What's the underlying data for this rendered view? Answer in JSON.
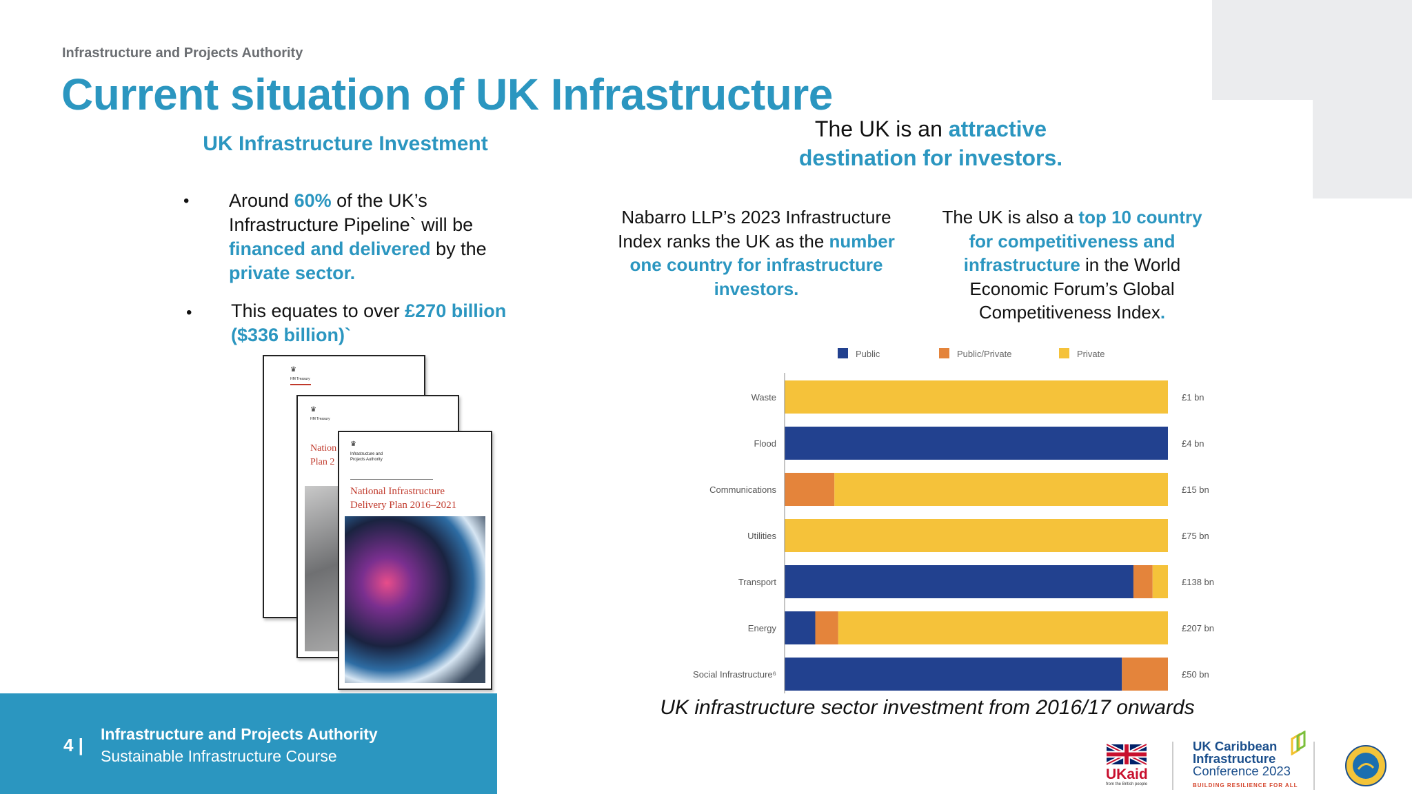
{
  "header": {
    "org_label": "Infrastructure and Projects Authority",
    "title": "Current situation of UK Infrastructure"
  },
  "left": {
    "heading": "UK Infrastructure Investment",
    "bullet1": {
      "t1": "Around ",
      "a1": "60%",
      "t2": " of the UK’s Infrastructure Pipeline` will be ",
      "a2": "financed and delivered",
      "t3": " by the ",
      "a3": "private sector."
    },
    "bullet2": {
      "t1": "This equates to over ",
      "a1": "£270 billion ($336 billion)",
      "t2": "`"
    },
    "bullet_char": "•",
    "reports": {
      "back_crest": "HM Treasury",
      "mid_crest": "HM Treasury",
      "mid_title": "Nation Plan 2",
      "front_org": "Infrastructure and Projects Authority",
      "front_title": "National Infrastructure Delivery Plan 2016–2021"
    }
  },
  "right": {
    "heading": {
      "t1": "The UK is an ",
      "a1": "attractive destination for investors."
    },
    "col1": {
      "t1": "Nabarro LLP’s 2023 Infrastructure Index ranks the UK as the ",
      "a1": "number one country for infrastructure investors."
    },
    "col2": {
      "t1": "The UK is also a ",
      "a1": "top 10 country for competitiveness and infrastructure",
      "t2": " in the World Economic Forum’s Global Competitiveness Index",
      "a2": "."
    }
  },
  "chart_data": {
    "type": "bar",
    "orientation": "horizontal",
    "stacked": true,
    "normalized": true,
    "categories": [
      "Waste",
      "Flood",
      "Communications",
      "Utilities",
      "Transport",
      "Energy",
      "Social Infrastructure⁶"
    ],
    "series": [
      {
        "name": "Public",
        "color": "#22418f",
        "values": [
          0,
          100,
          0,
          0,
          91,
          8,
          88
        ]
      },
      {
        "name": "Public/Private",
        "color": "#e4843b",
        "values": [
          0,
          0,
          13,
          0,
          5,
          6,
          12
        ]
      },
      {
        "name": "Private",
        "color": "#f5c23a",
        "values": [
          100,
          0,
          87,
          100,
          4,
          86,
          0
        ]
      }
    ],
    "totals": [
      "£1 bn",
      "£4 bn",
      "£15 bn",
      "£75 bn",
      "£138 bn",
      "£207 bn",
      "£50 bn"
    ],
    "legend_position": "top",
    "caption": "UK infrastructure sector investment from 2016/17 onwards"
  },
  "footer": {
    "page_number": "4 |",
    "org": "Infrastructure and Projects Authority",
    "course": "Sustainable Infrastructure Course"
  },
  "logos": {
    "ukaid": "UKaid",
    "ukaid_sub": "from the British people",
    "conference": [
      "UK Caribbean",
      "Infrastructure",
      "Conference 2023"
    ],
    "conference_tagline": "BUILDING RESILIENCE FOR ALL",
    "cdb_seal": "CARIBBEAN DEVELOPMENT BANK"
  }
}
